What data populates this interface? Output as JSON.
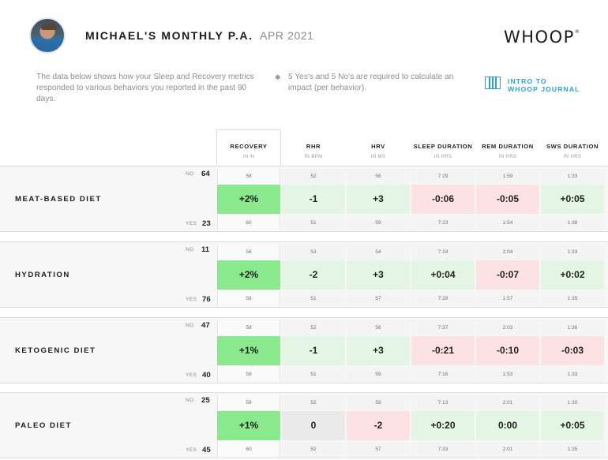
{
  "header": {
    "title": "MICHAEL'S MONTHLY P.A.",
    "date": "APR 2021",
    "logo": "WHOOP",
    "logo_mark": "®"
  },
  "intro": {
    "description": "The data below shows how your Sleep and Recovery metrics responded to various behaviors you reported in the past 90 days.",
    "note_icon": "asterisk-icon",
    "note": "5 Yes's and 5 No's are required to calculate an impact (per behavior).",
    "link_line1": "INTRO TO",
    "link_line2": "WHOOP JOURNAL",
    "link_icon": "journal-icon"
  },
  "colors": {
    "accent": "#2b9fd8",
    "strong_positive": "#8ae98d",
    "positive": "#e4f6e3",
    "negative": "#fde2e4",
    "neutral": "#eaeaea"
  },
  "columns": [
    {
      "name": "RECOVERY",
      "unit": "IN %"
    },
    {
      "name": "RHR",
      "unit": "IN BPM"
    },
    {
      "name": "HRV",
      "unit": "IN MS"
    },
    {
      "name": "SLEEP DURATION",
      "unit": "IN HRS"
    },
    {
      "name": "REM DURATION",
      "unit": "IN HRS"
    },
    {
      "name": "SWS DURATION",
      "unit": "IN HRS"
    }
  ],
  "no_label": "NO",
  "yes_label": "YES",
  "behaviors": [
    {
      "name": "MEAT-BASED DIET",
      "no_count": "64",
      "yes_count": "23",
      "no_values": [
        "58",
        "52",
        "56",
        "7:29",
        "1:59",
        "1:33"
      ],
      "impact": [
        "+2%",
        "-1",
        "+3",
        "-0:06",
        "-0:05",
        "+0:05"
      ],
      "impact_tone": [
        "strong",
        "pos",
        "pos",
        "neg",
        "neg",
        "pos"
      ],
      "yes_values": [
        "60",
        "51",
        "59",
        "7:23",
        "1:54",
        "1:38"
      ]
    },
    {
      "name": "HYDRATION",
      "no_count": "11",
      "yes_count": "76",
      "no_values": [
        "56",
        "53",
        "54",
        "7:24",
        "2:04",
        "1:33"
      ],
      "impact": [
        "+2%",
        "-2",
        "+3",
        "+0:04",
        "-0:07",
        "+0:02"
      ],
      "impact_tone": [
        "strong",
        "pos",
        "pos",
        "pos",
        "neg",
        "pos"
      ],
      "yes_values": [
        "58",
        "51",
        "57",
        "7:28",
        "1:57",
        "1:35"
      ]
    },
    {
      "name": "KETOGENIC DIET",
      "no_count": "47",
      "yes_count": "40",
      "no_values": [
        "58",
        "52",
        "56",
        "7:37",
        "2:03",
        "1:36"
      ],
      "impact": [
        "+1%",
        "-1",
        "+3",
        "-0:21",
        "-0:10",
        "-0:03"
      ],
      "impact_tone": [
        "strong",
        "pos",
        "pos",
        "neg",
        "neg",
        "neg"
      ],
      "yes_values": [
        "59",
        "51",
        "59",
        "7:16",
        "1:53",
        "1:33"
      ]
    },
    {
      "name": "PALEO DIET",
      "no_count": "25",
      "yes_count": "45",
      "no_values": [
        "59",
        "52",
        "59",
        "7:13",
        "2:01",
        "1:30"
      ],
      "impact": [
        "+1%",
        "0",
        "-2",
        "+0:20",
        "0:00",
        "+0:05"
      ],
      "impact_tone": [
        "strong",
        "neutral",
        "neg",
        "pos",
        "pos",
        "pos"
      ],
      "yes_values": [
        "60",
        "52",
        "57",
        "7:33",
        "2:01",
        "1:35"
      ]
    }
  ]
}
